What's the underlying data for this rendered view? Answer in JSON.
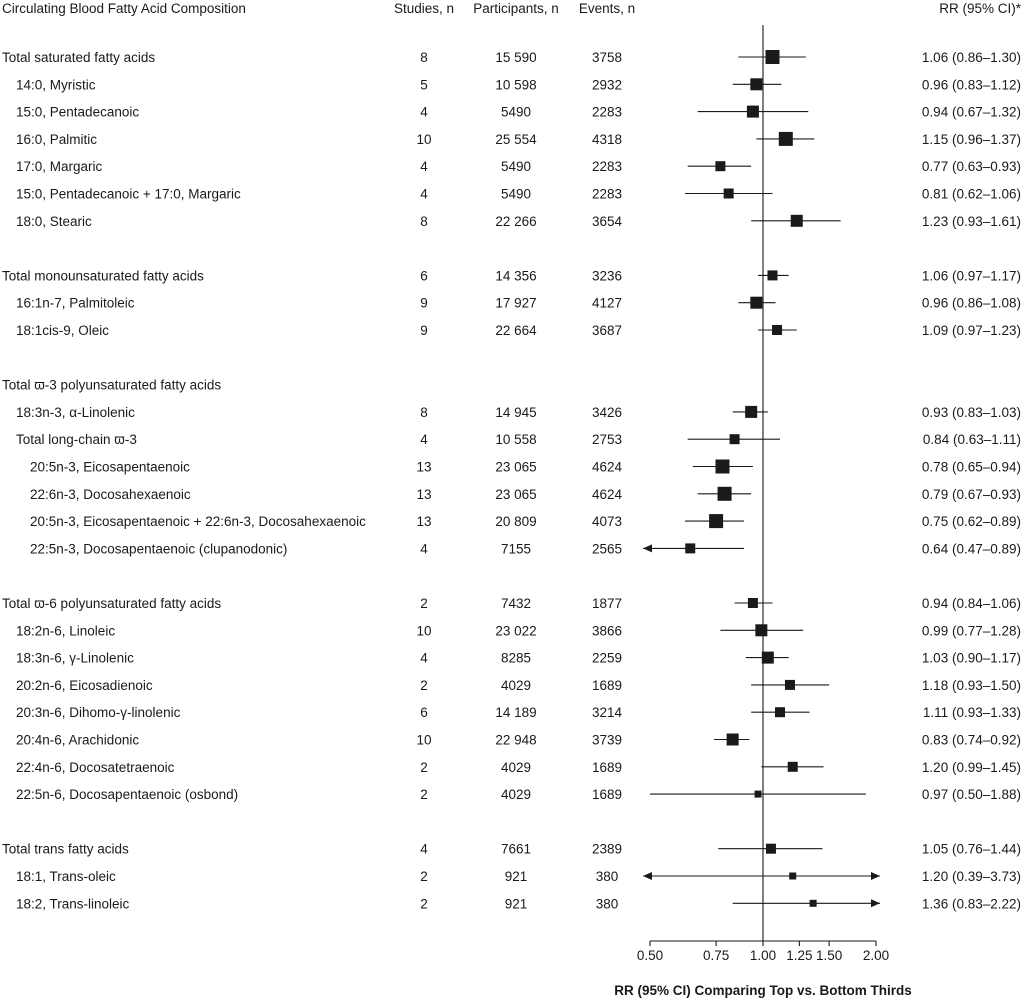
{
  "headers": {
    "composition": "Circulating Blood Fatty Acid Composition",
    "studies": "Studies, n",
    "participants": "Participants, n",
    "events": "Events, n",
    "rr": "RR (95% CI)*"
  },
  "chart_data": {
    "type": "forest",
    "x_axis": {
      "label": "RR (95% CI) Comparing Top vs. Bottom Thirds",
      "scale": "log",
      "ticks": [
        0.5,
        0.75,
        1.0,
        1.25,
        1.5,
        2.0
      ],
      "tick_labels": [
        "0.50",
        "0.75",
        "1.00",
        "1.25",
        "1.50",
        "2.00"
      ],
      "reference_line": 1.0
    },
    "groups": [
      {
        "rows": [
          {
            "label": "Total saturated fatty acids",
            "indent": 0,
            "studies": "8",
            "participants": "15 590",
            "events": "3758",
            "rr": 1.06,
            "lo": 0.86,
            "hi": 1.3,
            "rr_text": "1.06 (0.86–1.30)",
            "weight": 3
          },
          {
            "label": "14:0, Myristic",
            "indent": 1,
            "studies": "5",
            "participants": "10 598",
            "events": "2932",
            "rr": 0.96,
            "lo": 0.83,
            "hi": 1.12,
            "rr_text": "0.96 (0.83–1.12)",
            "weight": 2
          },
          {
            "label": "15:0, Pentadecanoic",
            "indent": 1,
            "studies": "4",
            "participants": "5490",
            "events": "2283",
            "rr": 0.94,
            "lo": 0.67,
            "hi": 1.32,
            "rr_text": "0.94 (0.67–1.32)",
            "weight": 2
          },
          {
            "label": "16:0, Palmitic",
            "indent": 1,
            "studies": "10",
            "participants": "25 554",
            "events": "4318",
            "rr": 1.15,
            "lo": 0.96,
            "hi": 1.37,
            "rr_text": "1.15 (0.96–1.37)",
            "weight": 3
          },
          {
            "label": "17:0, Margaric",
            "indent": 1,
            "studies": "4",
            "participants": "5490",
            "events": "2283",
            "rr": 0.77,
            "lo": 0.63,
            "hi": 0.93,
            "rr_text": "0.77 (0.63–0.93)",
            "weight": 1
          },
          {
            "label": "15:0, Pentadecanoic + 17:0, Margaric",
            "indent": 1,
            "studies": "4",
            "participants": "5490",
            "events": "2283",
            "rr": 0.81,
            "lo": 0.62,
            "hi": 1.06,
            "rr_text": "0.81 (0.62–1.06)",
            "weight": 1
          },
          {
            "label": "18:0, Stearic",
            "indent": 1,
            "studies": "8",
            "participants": "22 266",
            "events": "3654",
            "rr": 1.23,
            "lo": 0.93,
            "hi": 1.61,
            "rr_text": "1.23 (0.93–1.61)",
            "weight": 2
          }
        ]
      },
      {
        "rows": [
          {
            "label": "Total monounsaturated fatty acids",
            "indent": 0,
            "studies": "6",
            "participants": "14 356",
            "events": "3236",
            "rr": 1.06,
            "lo": 0.97,
            "hi": 1.17,
            "rr_text": "1.06 (0.97–1.17)",
            "weight": 1
          },
          {
            "label": "16:1n-7, Palmitoleic",
            "indent": 1,
            "studies": "9",
            "participants": "17 927",
            "events": "4127",
            "rr": 0.96,
            "lo": 0.86,
            "hi": 1.08,
            "rr_text": "0.96 (0.86–1.08)",
            "weight": 2
          },
          {
            "label": "18:1cis-9, Oleic",
            "indent": 1,
            "studies": "9",
            "participants": "22 664",
            "events": "3687",
            "rr": 1.09,
            "lo": 0.97,
            "hi": 1.23,
            "rr_text": "1.09 (0.97–1.23)",
            "weight": 1
          }
        ]
      },
      {
        "rows": [
          {
            "label": "Total ϖ-3 polyunsaturated fatty acids",
            "indent": 0,
            "studies": "",
            "participants": "",
            "events": "",
            "rr": null,
            "lo": null,
            "hi": null,
            "rr_text": "",
            "weight": 0
          },
          {
            "label": "18:3n-3, α-Linolenic",
            "indent": 1,
            "studies": "8",
            "participants": "14 945",
            "events": "3426",
            "rr": 0.93,
            "lo": 0.83,
            "hi": 1.03,
            "rr_text": "0.93 (0.83–1.03)",
            "weight": 2
          },
          {
            "label": "Total long-chain ϖ-3",
            "indent": 1,
            "studies": "4",
            "participants": "10 558",
            "events": "2753",
            "rr": 0.84,
            "lo": 0.63,
            "hi": 1.11,
            "rr_text": "0.84 (0.63–1.11)",
            "weight": 1
          },
          {
            "label": "20:5n-3, Eicosapentaenoic",
            "indent": 2,
            "studies": "13",
            "participants": "23 065",
            "events": "4624",
            "rr": 0.78,
            "lo": 0.65,
            "hi": 0.94,
            "rr_text": "0.78 (0.65–0.94)",
            "weight": 3
          },
          {
            "label": "22:6n-3, Docosahexaenoic",
            "indent": 2,
            "studies": "13",
            "participants": "23 065",
            "events": "4624",
            "rr": 0.79,
            "lo": 0.67,
            "hi": 0.93,
            "rr_text": "0.79 (0.67–0.93)",
            "weight": 3
          },
          {
            "label": "20:5n-3, Eicosapentaenoic + 22:6n-3, Docosahexaenoic",
            "indent": 2,
            "studies": "13",
            "participants": "20 809",
            "events": "4073",
            "rr": 0.75,
            "lo": 0.62,
            "hi": 0.89,
            "rr_text": "0.75 (0.62–0.89)",
            "weight": 3
          },
          {
            "label": "22:5n-3, Docosapentaenoic (clupanodonic)",
            "indent": 2,
            "studies": "4",
            "participants": "7155",
            "events": "2565",
            "rr": 0.64,
            "lo": 0.47,
            "hi": 0.89,
            "rr_text": "0.64 (0.47–0.89)",
            "weight": 1
          }
        ]
      },
      {
        "rows": [
          {
            "label": "Total ϖ-6 polyunsaturated fatty acids",
            "indent": 0,
            "studies": "2",
            "participants": "7432",
            "events": "1877",
            "rr": 0.94,
            "lo": 0.84,
            "hi": 1.06,
            "rr_text": "0.94 (0.84–1.06)",
            "weight": 1
          },
          {
            "label": "18:2n-6, Linoleic",
            "indent": 1,
            "studies": "10",
            "participants": "23 022",
            "events": "3866",
            "rr": 0.99,
            "lo": 0.77,
            "hi": 1.28,
            "rr_text": "0.99 (0.77–1.28)",
            "weight": 2
          },
          {
            "label": "18:3n-6, γ-Linolenic",
            "indent": 1,
            "studies": "4",
            "participants": "8285",
            "events": "2259",
            "rr": 1.03,
            "lo": 0.9,
            "hi": 1.17,
            "rr_text": "1.03 (0.90–1.17)",
            "weight": 2
          },
          {
            "label": "20:2n-6, Eicosadienoic",
            "indent": 1,
            "studies": "2",
            "participants": "4029",
            "events": "1689",
            "rr": 1.18,
            "lo": 0.93,
            "hi": 1.5,
            "rr_text": "1.18 (0.93–1.50)",
            "weight": 1
          },
          {
            "label": "20:3n-6, Dihomo-γ-linolenic",
            "indent": 1,
            "studies": "6",
            "participants": "14 189",
            "events": "3214",
            "rr": 1.11,
            "lo": 0.93,
            "hi": 1.33,
            "rr_text": "1.11 (0.93–1.33)",
            "weight": 1
          },
          {
            "label": "20:4n-6, Arachidonic",
            "indent": 1,
            "studies": "10",
            "participants": "22 948",
            "events": "3739",
            "rr": 0.83,
            "lo": 0.74,
            "hi": 0.92,
            "rr_text": "0.83 (0.74–0.92)",
            "weight": 2
          },
          {
            "label": "22:4n-6, Docosatetraenoic",
            "indent": 1,
            "studies": "2",
            "participants": "4029",
            "events": "1689",
            "rr": 1.2,
            "lo": 0.99,
            "hi": 1.45,
            "rr_text": "1.20 (0.99–1.45)",
            "weight": 1
          },
          {
            "label": "22:5n-6, Docosapentaenoic (osbond)",
            "indent": 1,
            "studies": "2",
            "participants": "4029",
            "events": "1689",
            "rr": 0.97,
            "lo": 0.5,
            "hi": 1.88,
            "rr_text": "0.97 (0.50–1.88)",
            "weight": 0
          }
        ]
      },
      {
        "rows": [
          {
            "label": "Total trans fatty acids",
            "indent": 0,
            "studies": "4",
            "participants": "7661",
            "events": "2389",
            "rr": 1.05,
            "lo": 0.76,
            "hi": 1.44,
            "rr_text": "1.05 (0.76–1.44)",
            "weight": 1
          },
          {
            "label": "18:1, Trans-oleic",
            "indent": 1,
            "studies": "2",
            "participants": "921",
            "events": "380",
            "rr": 1.2,
            "lo": 0.39,
            "hi": 3.73,
            "rr_text": "1.20 (0.39–3.73)",
            "weight": 0
          },
          {
            "label": "18:2, Trans-linoleic",
            "indent": 1,
            "studies": "2",
            "participants": "921",
            "events": "380",
            "rr": 1.36,
            "lo": 0.83,
            "hi": 2.22,
            "rr_text": "1.36 (0.83–2.22)",
            "weight": 0
          }
        ]
      }
    ]
  }
}
